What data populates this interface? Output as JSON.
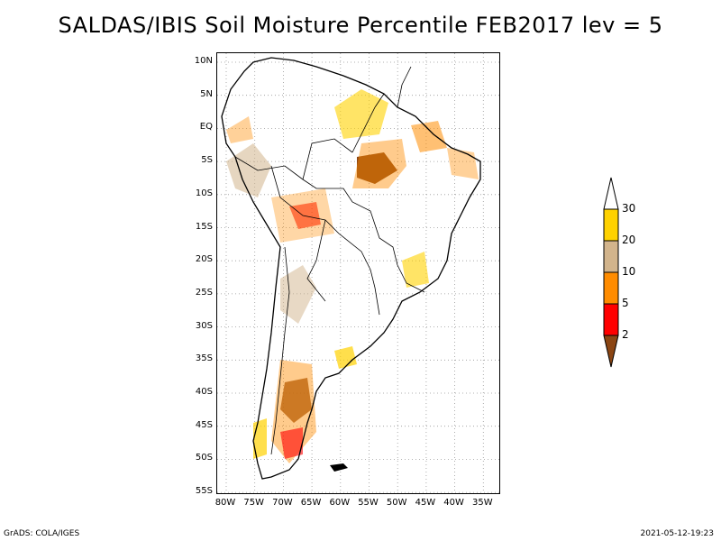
{
  "title": "SALDAS/IBIS Soil Moisture Percentile FEB2017 lev = 5",
  "lat_ticks": [
    "10N",
    "5N",
    "EQ",
    "5S",
    "10S",
    "15S",
    "20S",
    "25S",
    "30S",
    "35S",
    "40S",
    "45S",
    "50S",
    "55S"
  ],
  "lon_ticks": [
    "80W",
    "75W",
    "70W",
    "65W",
    "60W",
    "55W",
    "50W",
    "45W",
    "40W",
    "35W"
  ],
  "colorbar": {
    "labels": [
      "30",
      "20",
      "10",
      "5",
      "2"
    ],
    "colors": {
      "above_30": "#ffffff",
      "20_30": "#ffd200",
      "10_20": "#d2b48c",
      "5_10": "#ff8c00",
      "2_5": "#ff0000",
      "below_2": "#8b4513"
    }
  },
  "footer": {
    "left": "GrADS: COLA/IGES",
    "right": "2021-05-12-19:23"
  }
}
